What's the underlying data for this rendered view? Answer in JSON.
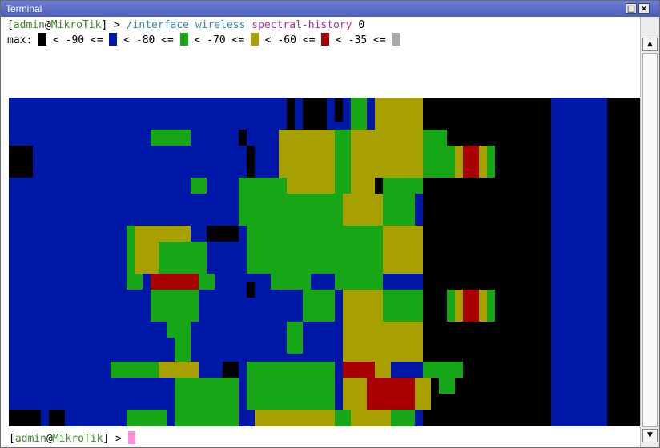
{
  "window": {
    "title": "Terminal"
  },
  "prompt": {
    "open": "[",
    "user": "admin",
    "at": "@",
    "host": "MikroTik",
    "close": "]",
    "arrow": " > "
  },
  "command": {
    "path": "/interface wireless",
    "verb": "spectral-history",
    "arg": "0"
  },
  "legend": {
    "label": "max:",
    "separator": "<=",
    "entries": [
      {
        "color": "#000000",
        "threshold": "-90"
      },
      {
        "color": "#0018a8",
        "threshold": "-80"
      },
      {
        "color": "#16a616",
        "threshold": "-70"
      },
      {
        "color": "#a8a000",
        "threshold": "-60"
      },
      {
        "color": "#a80000",
        "threshold": "-35"
      },
      {
        "color": "#a8a8a8",
        "threshold": ""
      }
    ]
  },
  "colors": {
    "black": "#000000",
    "blue": "#0018a8",
    "green": "#16a616",
    "yellow": "#a8a000",
    "red": "#a80000",
    "gray": "#a8a8a8",
    "cursor": "#ff8fd8"
  },
  "icons": {
    "maximize": "maximize-icon",
    "close": "close-icon",
    "scroll_up": "up-arrow-icon",
    "scroll_down": "down-arrow-icon"
  }
}
